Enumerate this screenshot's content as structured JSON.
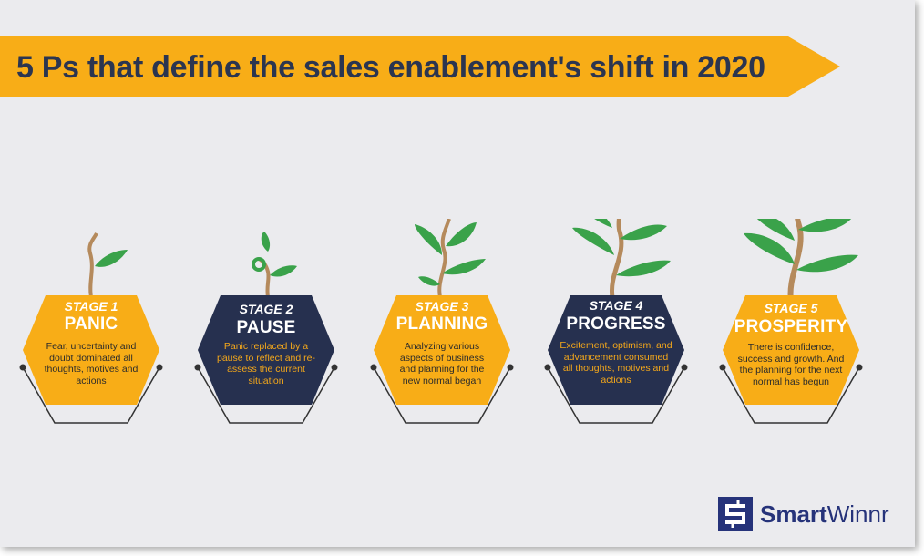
{
  "title": "5 Ps that define the sales enablement's shift in 2020",
  "colors": {
    "banner": "#f8ad17",
    "orange": "#f8ad17",
    "navy": "#26304f",
    "leaf": "#3aa24a",
    "stem": "#b58a5c",
    "background": "#ebebee"
  },
  "stages": [
    {
      "number": "STAGE 1",
      "name": "PANIC",
      "description": "Fear, uncertainty and doubt dominated all thoughts, motives and actions",
      "theme": "orange"
    },
    {
      "number": "STAGE 2",
      "name": "PAUSE",
      "description": "Panic replaced by a pause to reflect and re-assess the current situation",
      "theme": "navy"
    },
    {
      "number": "STAGE 3",
      "name": "PLANNING",
      "description": "Analyzing various aspects of business and planning for the new normal began",
      "theme": "orange"
    },
    {
      "number": "STAGE 4",
      "name": "PROGRESS",
      "description": "Excitement, optimism, and advancement consumed all thoughts, motives and actions",
      "theme": "navy"
    },
    {
      "number": "STAGE 5",
      "name": "PROSPERITY",
      "description": "There is confidence, success and growth. And the planning for the next normal has begun",
      "theme": "orange"
    }
  ],
  "logo": {
    "bold": "Smart",
    "regular": "Winnr"
  }
}
